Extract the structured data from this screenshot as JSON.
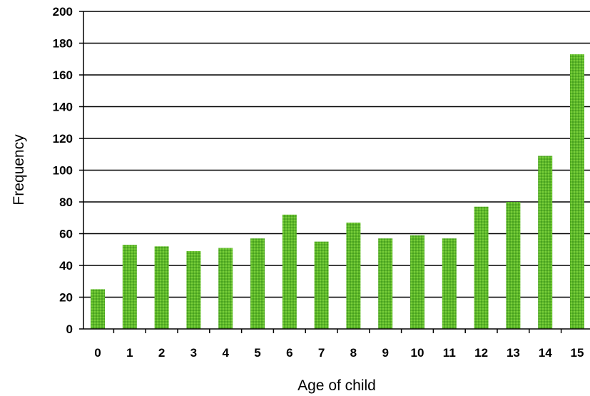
{
  "chart_data": {
    "type": "bar",
    "title": "",
    "xlabel": "Age of child",
    "ylabel": "Frequency",
    "categories": [
      "0",
      "1",
      "2",
      "3",
      "4",
      "5",
      "6",
      "7",
      "8",
      "9",
      "10",
      "11",
      "12",
      "13",
      "14",
      "15"
    ],
    "values": [
      25,
      53,
      52,
      49,
      51,
      57,
      72,
      55,
      67,
      57,
      59,
      57,
      77,
      80,
      109,
      173
    ],
    "ylim": [
      0,
      200
    ],
    "yticks": [
      0,
      20,
      40,
      60,
      80,
      100,
      120,
      140,
      160,
      180,
      200
    ],
    "grid": true,
    "legend": "none",
    "bar_color": "#5cb82a"
  }
}
